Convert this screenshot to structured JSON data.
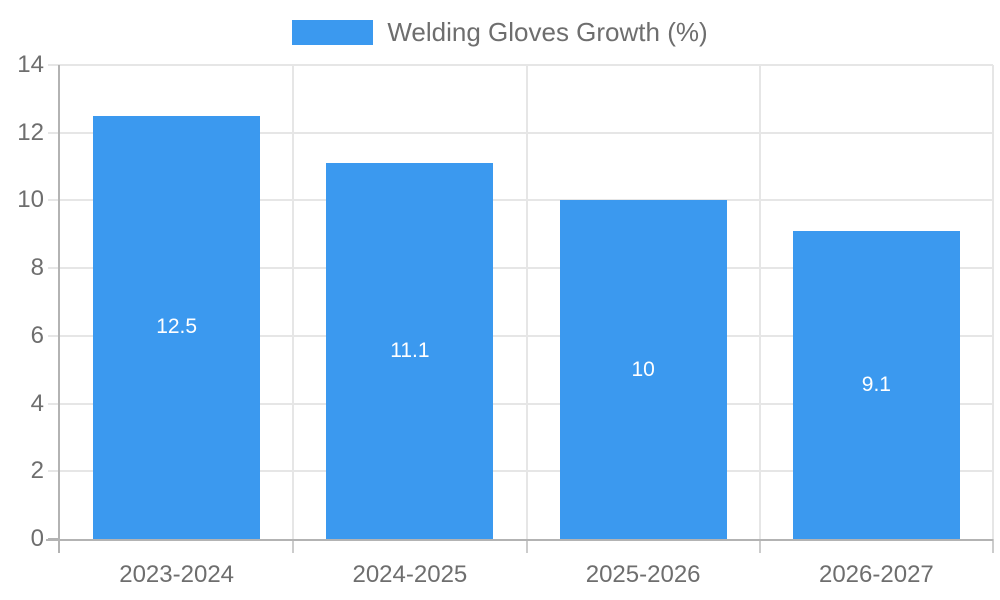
{
  "chart_data": {
    "type": "bar",
    "title": "",
    "legend": {
      "label": "Welding Gloves Growth (%)",
      "position": "top-center"
    },
    "categories": [
      "2023-2024",
      "2024-2025",
      "2025-2026",
      "2026-2027"
    ],
    "values": [
      12.5,
      11.1,
      10,
      9.1
    ],
    "value_labels": [
      "12.5",
      "11.1",
      "10",
      "9.1"
    ],
    "xlabel": "",
    "ylabel": "",
    "ylim": [
      0,
      14
    ],
    "yticks": [
      0,
      2,
      4,
      6,
      8,
      10,
      12,
      14
    ],
    "grid": true,
    "colors": {
      "bar": "#3b99ef",
      "grid": "#e6e6e6",
      "axis": "#b3b3b3",
      "boundary_tick": "#cccccc",
      "tick_text": "#6e6e6e",
      "legend_text": "#6e6e6e",
      "value_label_text": "#ffffff",
      "background": "#ffffff"
    }
  }
}
